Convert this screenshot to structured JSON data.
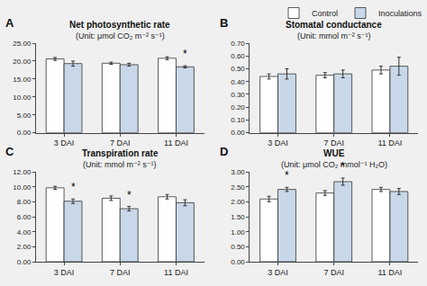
{
  "chart_data": [
    {
      "type": "bar",
      "panel_label": "A",
      "title": "Net photosynthetic rate",
      "subtitle": "(Unit: μmol CO₂ m⁻² s⁻¹)",
      "categories": [
        "3 DAI",
        "7 DAI",
        "11 DAI"
      ],
      "series": [
        {
          "name": "Control",
          "color": "#ffffff",
          "values": [
            20.6,
            19.4,
            20.8
          ],
          "error": [
            0.4,
            0.3,
            0.4
          ]
        },
        {
          "name": "Inoculations",
          "color": "#c8d8e8",
          "values": [
            19.3,
            19.0,
            18.4
          ],
          "error": [
            0.7,
            0.4,
            0.3
          ]
        }
      ],
      "ylim": [
        0,
        25
      ],
      "yticks": [
        {
          "value": 0.0,
          "label": "0.00"
        },
        {
          "value": 5.0,
          "label": "5.00"
        },
        {
          "value": 10.0,
          "label": "10.00"
        },
        {
          "value": 15.0,
          "label": "15.00"
        },
        {
          "value": 20.0,
          "label": "20.00"
        },
        {
          "value": 25.0,
          "label": "25.00"
        }
      ],
      "annotations": [
        {
          "text": "*",
          "category": "11 DAI",
          "series": "Inoculations"
        }
      ],
      "grid": false
    },
    {
      "type": "bar",
      "panel_label": "B",
      "title": "Stomatal conductance",
      "subtitle": "(Unit: mmol m⁻² s⁻¹)",
      "categories": [
        "3 DAI",
        "7 DAI",
        "11 DAI"
      ],
      "series": [
        {
          "name": "Control",
          "color": "#ffffff",
          "values": [
            0.44,
            0.45,
            0.49
          ],
          "error": [
            0.02,
            0.02,
            0.03
          ]
        },
        {
          "name": "Inoculations",
          "color": "#c8d8e8",
          "values": [
            0.46,
            0.46,
            0.52
          ],
          "error": [
            0.04,
            0.03,
            0.07
          ]
        }
      ],
      "ylim": [
        0,
        0.7
      ],
      "yticks": [
        {
          "value": 0.0,
          "label": "0.00"
        },
        {
          "value": 0.1,
          "label": "0.10"
        },
        {
          "value": 0.2,
          "label": "0.20"
        },
        {
          "value": 0.3,
          "label": "0.30"
        },
        {
          "value": 0.4,
          "label": "0.40"
        },
        {
          "value": 0.5,
          "label": "0.50"
        },
        {
          "value": 0.6,
          "label": "0.60"
        },
        {
          "value": 0.7,
          "label": "0.70"
        }
      ],
      "annotations": [],
      "legend": "upper right",
      "grid": false
    },
    {
      "type": "bar",
      "panel_label": "C",
      "title": "Transpiration rate",
      "subtitle": "(Unit: mmol m⁻² s⁻¹)",
      "categories": [
        "3 DAI",
        "7 DAI",
        "11 DAI"
      ],
      "series": [
        {
          "name": "Control",
          "color": "#ffffff",
          "values": [
            9.9,
            8.5,
            8.7
          ],
          "error": [
            0.2,
            0.3,
            0.3
          ]
        },
        {
          "name": "Inoculations",
          "color": "#c8d8e8",
          "values": [
            8.1,
            7.1,
            7.9
          ],
          "error": [
            0.3,
            0.3,
            0.4
          ]
        }
      ],
      "ylim": [
        0,
        12
      ],
      "yticks": [
        {
          "value": 0.0,
          "label": "0.00"
        },
        {
          "value": 2.0,
          "label": "2.00"
        },
        {
          "value": 4.0,
          "label": "4.00"
        },
        {
          "value": 6.0,
          "label": "6.00"
        },
        {
          "value": 8.0,
          "label": "8.00"
        },
        {
          "value": 10.0,
          "label": "10.00"
        },
        {
          "value": 12.0,
          "label": "12.00"
        }
      ],
      "annotations": [
        {
          "text": "*",
          "category": "3 DAI",
          "series": "Inoculations"
        },
        {
          "text": "*",
          "category": "7 DAI",
          "series": "Inoculations"
        }
      ],
      "grid": false
    },
    {
      "type": "bar",
      "panel_label": "D",
      "title": "WUE",
      "subtitle": "(Unit: μmol CO₂ mmol⁻¹ H₂O)",
      "categories": [
        "3 DAI",
        "7 DAI",
        "11 DAI"
      ],
      "series": [
        {
          "name": "Control",
          "color": "#ffffff",
          "values": [
            2.1,
            2.3,
            2.42
          ],
          "error": [
            0.09,
            0.08,
            0.07
          ]
        },
        {
          "name": "Inoculations",
          "color": "#c8d8e8",
          "values": [
            2.42,
            2.68,
            2.35
          ],
          "error": [
            0.07,
            0.12,
            0.1
          ]
        }
      ],
      "ylim": [
        0,
        3.0
      ],
      "yticks": [
        {
          "value": 0.0,
          "label": "0.00"
        },
        {
          "value": 0.5,
          "label": "0.50"
        },
        {
          "value": 1.0,
          "label": "1.00"
        },
        {
          "value": 1.5,
          "label": "1.50"
        },
        {
          "value": 2.0,
          "label": "2.00"
        },
        {
          "value": 2.5,
          "label": "2.50"
        },
        {
          "value": 3.0,
          "label": "3.00"
        }
      ],
      "annotations": [
        {
          "text": "*",
          "category": "3 DAI",
          "series": "Inoculations"
        },
        {
          "text": "*",
          "category": "7 DAI",
          "series": "Inoculations"
        }
      ],
      "grid": false
    }
  ]
}
